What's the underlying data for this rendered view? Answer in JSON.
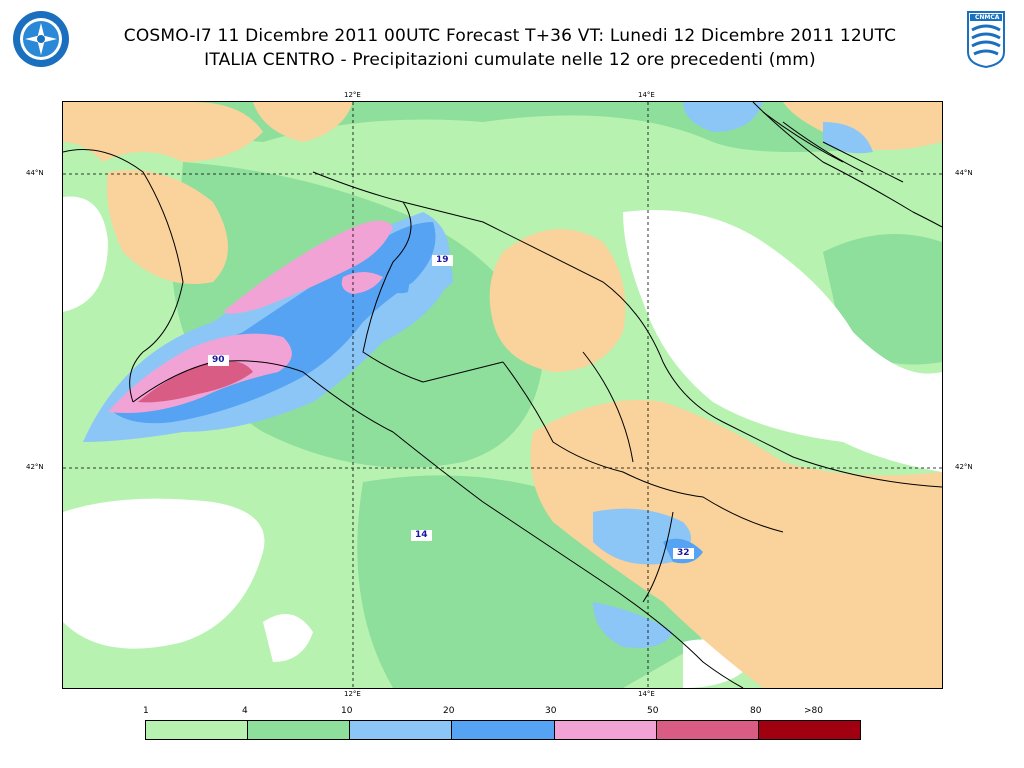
{
  "header": {
    "line1": "COSMO-I7 11 Dicembre 2011 00UTC Forecast T+36 VT: Lunedi 12 Dicembre 2011 12UTC",
    "line2": "ITALIA CENTRO - Precipitazioni cumulate nelle 12 ore precedenti (mm)"
  },
  "logos": {
    "left": "meteo-service-emblem",
    "right_text": "CNMCA"
  },
  "axes": {
    "lon_top": [
      "12°E",
      "14°E"
    ],
    "lon_bottom": [
      "12°E",
      "14°E"
    ],
    "lat_left": [
      "44°N",
      "42°N"
    ],
    "lat_right": [
      "44°N",
      "42°N"
    ]
  },
  "map_labels": [
    "19",
    "90",
    "14",
    "32"
  ],
  "legend": {
    "thresholds": [
      "1",
      "4",
      "10",
      "20",
      "30",
      "50",
      "80",
      ">80"
    ],
    "colors": [
      "#b7f2b0",
      "#8ede9c",
      "#8cc6f7",
      "#55a3f2",
      "#f2a3d6",
      "#d95c84",
      "#a0000f"
    ]
  }
}
